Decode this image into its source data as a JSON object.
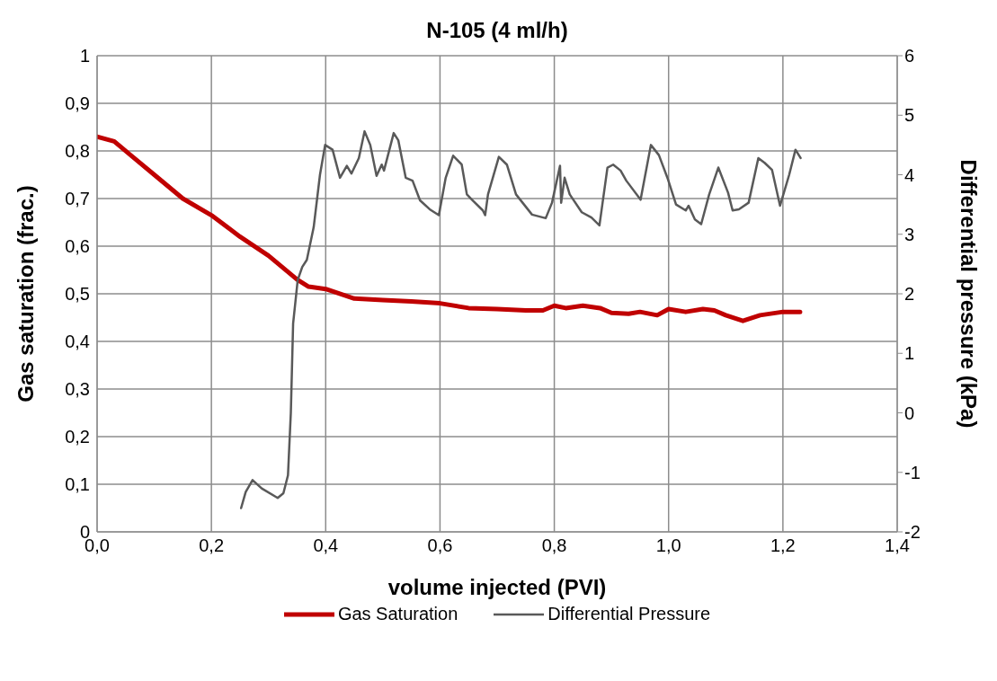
{
  "chart_data": {
    "type": "line",
    "title": "N-105  (4 ml/h)",
    "xlabel": "volume injected (PVI)",
    "ylabel": "Gas saturation (frac.)",
    "y2label": "Differential pressure (kPa)",
    "xlim": [
      0,
      1.4
    ],
    "xticks": [
      {
        "value": 0,
        "label": "0,0"
      },
      {
        "value": 0.2,
        "label": "0,2"
      },
      {
        "value": 0.4,
        "label": "0,4"
      },
      {
        "value": 0.6,
        "label": "0,6"
      },
      {
        "value": 0.8,
        "label": "0,8"
      },
      {
        "value": 1.0,
        "label": "1,0"
      },
      {
        "value": 1.2,
        "label": "1,2"
      },
      {
        "value": 1.4,
        "label": "1,4"
      }
    ],
    "ylim": [
      0,
      1
    ],
    "yticks": [
      0,
      {
        "value": 0.1,
        "label": "0,1"
      },
      {
        "value": 0.2,
        "label": "0,2"
      },
      {
        "value": 0.3,
        "label": "0,3"
      },
      {
        "value": 0.4,
        "label": "0,4"
      },
      {
        "value": 0.5,
        "label": "0,5"
      },
      {
        "value": 0.6,
        "label": "0,6"
      },
      {
        "value": 0.7,
        "label": "0,7"
      },
      {
        "value": 0.8,
        "label": "0,8"
      },
      {
        "value": 0.9,
        "label": "0,9"
      },
      1
    ],
    "y2lim": [
      -2,
      6
    ],
    "y2ticks": [
      -2,
      -1,
      0,
      1,
      2,
      3,
      4,
      5,
      6
    ],
    "grid": true,
    "legend": "bottom",
    "marker": "none",
    "line_style": "solid",
    "series": [
      {
        "name": "Gas Saturation",
        "color": "#c00000",
        "x": [
          0,
          0.03,
          0.06,
          0.1,
          0.15,
          0.2,
          0.25,
          0.3,
          0.35,
          0.37,
          0.4,
          0.45,
          0.5,
          0.55,
          0.6,
          0.65,
          0.7,
          0.75,
          0.78,
          0.8,
          0.82,
          0.85,
          0.88,
          0.9,
          0.93,
          0.95,
          0.98,
          1.0,
          1.03,
          1.06,
          1.08,
          1.1,
          1.13,
          1.16,
          1.2,
          1.23
        ],
        "values": [
          0.83,
          0.82,
          0.79,
          0.75,
          0.7,
          0.665,
          0.62,
          0.58,
          0.53,
          0.515,
          0.51,
          0.49,
          0.487,
          0.484,
          0.48,
          0.47,
          0.468,
          0.465,
          0.465,
          0.475,
          0.47,
          0.475,
          0.47,
          0.46,
          0.458,
          0.462,
          0.455,
          0.468,
          0.462,
          0.468,
          0.465,
          0.455,
          0.443,
          0.455,
          0.462,
          0.462
        ]
      },
      {
        "name": "Differential Pressure",
        "color": "#595959",
        "axis": "y2",
        "x": [
          0.252,
          0.26,
          0.272,
          0.288,
          0.316,
          0.326,
          0.334,
          0.339,
          0.343,
          0.351,
          0.359,
          0.367,
          0.379,
          0.39,
          0.399,
          0.412,
          0.425,
          0.437,
          0.445,
          0.458,
          0.468,
          0.478,
          0.489,
          0.498,
          0.502,
          0.519,
          0.527,
          0.54,
          0.552,
          0.565,
          0.582,
          0.598,
          0.61,
          0.623,
          0.638,
          0.647,
          0.656,
          0.675,
          0.679,
          0.684,
          0.703,
          0.717,
          0.733,
          0.761,
          0.785,
          0.796,
          0.81,
          0.812,
          0.818,
          0.827,
          0.848,
          0.865,
          0.879,
          0.893,
          0.903,
          0.916,
          0.926,
          0.951,
          0.969,
          0.983,
          0.999,
          1.013,
          1.03,
          1.035,
          1.046,
          1.057,
          1.071,
          1.087,
          1.104,
          1.112,
          1.123,
          1.14,
          1.157,
          1.168,
          1.181,
          1.195,
          1.211,
          1.222,
          1.231
        ],
        "values": [
          -1.6,
          -1.33,
          -1.13,
          -1.27,
          -1.43,
          -1.35,
          -1.05,
          0.0,
          1.5,
          2.23,
          2.45,
          2.57,
          3.12,
          4.0,
          4.5,
          4.42,
          3.95,
          4.15,
          4.02,
          4.28,
          4.73,
          4.5,
          3.98,
          4.17,
          4.07,
          4.7,
          4.58,
          3.95,
          3.9,
          3.57,
          3.42,
          3.32,
          3.95,
          4.32,
          4.17,
          3.67,
          3.58,
          3.4,
          3.32,
          3.67,
          4.3,
          4.17,
          3.67,
          3.33,
          3.27,
          3.53,
          4.15,
          3.53,
          3.95,
          3.67,
          3.37,
          3.28,
          3.15,
          4.12,
          4.17,
          4.07,
          3.9,
          3.58,
          4.5,
          4.33,
          3.92,
          3.5,
          3.4,
          3.48,
          3.25,
          3.17,
          3.67,
          4.12,
          3.7,
          3.4,
          3.42,
          3.53,
          4.28,
          4.2,
          4.08,
          3.48,
          4.0,
          4.42,
          4.28
        ]
      }
    ]
  }
}
